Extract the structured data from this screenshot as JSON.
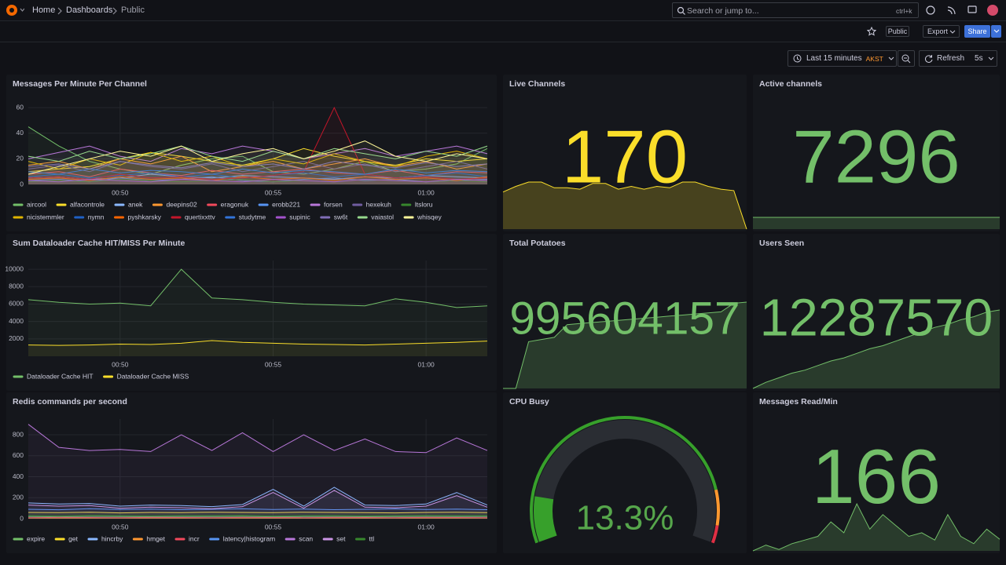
{
  "topbar": {
    "breadcrumbs": [
      "Home",
      "Dashboards",
      "Public"
    ],
    "search": "Search or jump to...",
    "shortcut": "ctrl+k"
  },
  "toolbar": {
    "badge": "Public",
    "export": "Export",
    "share": "Share"
  },
  "timepicker": {
    "range": "Last 15 minutes",
    "timezone": "AKST",
    "refresh": "Refresh",
    "interval": "5s"
  },
  "panels": [
    {
      "type": "timeseries",
      "title": "Messages Per Minute Per Channel",
      "ylim": [
        0,
        65
      ],
      "yticks": [
        0,
        20,
        40,
        60
      ],
      "xlim": [
        "00:47",
        "01:02"
      ],
      "xticks": [
        "00:50",
        "00:55",
        "01:00"
      ],
      "x": [
        "00:47",
        "00:48",
        "00:49",
        "00:50",
        "00:51",
        "00:52",
        "00:53",
        "00:54",
        "00:55",
        "00:56",
        "00:57",
        "00:58",
        "00:59",
        "01:00",
        "01:01",
        "01:02"
      ],
      "series": [
        {
          "name": "aircool",
          "color": "#73bf69",
          "values": [
            45,
            30,
            18,
            12,
            8,
            15,
            20,
            22,
            10,
            8,
            12,
            18,
            10,
            12,
            16,
            28
          ]
        },
        {
          "name": "alfacontrole",
          "color": "#fade2a",
          "values": [
            10,
            12,
            14,
            20,
            25,
            22,
            18,
            15,
            20,
            28,
            22,
            18,
            15,
            20,
            18,
            20
          ]
        },
        {
          "name": "anek",
          "color": "#8ab8ff",
          "values": [
            5,
            6,
            4,
            5,
            8,
            6,
            5,
            7,
            6,
            5,
            4,
            6,
            5,
            7,
            6,
            5
          ]
        },
        {
          "name": "deepins02",
          "color": "#ff9830",
          "values": [
            15,
            18,
            12,
            20,
            16,
            22,
            10,
            14,
            18,
            12,
            16,
            20,
            14,
            18,
            12,
            16
          ]
        },
        {
          "name": "eragonuk",
          "color": "#f2495c",
          "values": [
            8,
            10,
            6,
            12,
            9,
            7,
            11,
            8,
            10,
            12,
            9,
            8,
            11,
            7,
            10,
            9
          ]
        },
        {
          "name": "erobb221",
          "color": "#5794f2",
          "values": [
            3,
            4,
            2,
            5,
            3,
            4,
            6,
            3,
            2,
            4,
            5,
            3,
            4,
            2,
            3,
            4
          ]
        },
        {
          "name": "forsen",
          "color": "#b877d9",
          "values": [
            20,
            25,
            30,
            22,
            18,
            28,
            24,
            30,
            26,
            20,
            24,
            28,
            22,
            26,
            30,
            24
          ]
        },
        {
          "name": "hexekuh",
          "color": "#705da0",
          "values": [
            12,
            15,
            10,
            18,
            14,
            12,
            16,
            10,
            14,
            18,
            12,
            16,
            10,
            14,
            18,
            12
          ]
        },
        {
          "name": "ltsloru",
          "color": "#37872d",
          "values": [
            2,
            3,
            2,
            4,
            3,
            2,
            3,
            4,
            2,
            3,
            2,
            4,
            3,
            2,
            3,
            2
          ]
        },
        {
          "name": "nicistemmler",
          "color": "#e0b400",
          "values": [
            18,
            12,
            20,
            15,
            25,
            18,
            22,
            14,
            20,
            16,
            24,
            18,
            14,
            22,
            26,
            20
          ]
        },
        {
          "name": "nymn",
          "color": "#1f60c4",
          "values": [
            6,
            8,
            5,
            7,
            9,
            6,
            8,
            5,
            7,
            9,
            6,
            8,
            5,
            7,
            9,
            6
          ]
        },
        {
          "name": "pyshkarsky",
          "color": "#fa6400",
          "values": [
            4,
            5,
            3,
            6,
            4,
            5,
            3,
            6,
            4,
            5,
            3,
            6,
            4,
            5,
            3,
            6
          ]
        },
        {
          "name": "quertixxttv",
          "color": "#c4162a",
          "values": [
            5,
            6,
            4,
            8,
            5,
            6,
            4,
            5,
            7,
            10,
            60,
            8,
            5,
            6,
            4,
            5
          ]
        },
        {
          "name": "studytme",
          "color": "#3274d9",
          "values": [
            10,
            8,
            12,
            9,
            11,
            10,
            8,
            12,
            9,
            11,
            10,
            8,
            12,
            9,
            11,
            10
          ]
        },
        {
          "name": "supinic",
          "color": "#a352cc",
          "values": [
            3,
            2,
            4,
            3,
            2,
            4,
            3,
            2,
            4,
            3,
            2,
            4,
            3,
            2,
            4,
            3
          ]
        },
        {
          "name": "sw6t",
          "color": "#806eb7",
          "values": [
            14,
            16,
            12,
            18,
            15,
            13,
            17,
            14,
            16,
            12,
            18,
            15,
            13,
            17,
            14,
            16
          ]
        },
        {
          "name": "vaiastol",
          "color": "#96d98d",
          "values": [
            22,
            18,
            26,
            20,
            24,
            30,
            22,
            18,
            26,
            20,
            28,
            24,
            20,
            26,
            22,
            30
          ]
        },
        {
          "name": "whisqey",
          "color": "#fff899",
          "values": [
            8,
            14,
            20,
            26,
            22,
            30,
            18,
            24,
            28,
            20,
            26,
            34,
            22,
            18,
            24,
            20
          ]
        }
      ]
    },
    {
      "type": "stat",
      "title": "Live Channels",
      "value": 170,
      "color": "#fade2a",
      "sparkline": [
        130,
        150,
        165,
        165,
        145,
        145,
        140,
        160,
        160,
        140,
        150,
        140,
        150,
        145,
        165,
        165,
        150,
        140,
        135,
        0
      ]
    },
    {
      "type": "stat",
      "title": "Active channels",
      "value": 7296,
      "color": "#73bf69",
      "sparkline": [
        7296,
        7296,
        7296,
        7296,
        7296,
        7296,
        7296,
        7296,
        7296,
        7296,
        7296,
        7296,
        7296,
        7296,
        7296,
        7296,
        7296,
        7296,
        7296,
        7296
      ]
    },
    {
      "type": "timeseries",
      "title": "Sum Dataloader Cache HIT/MISS Per Minute",
      "ylim": [
        0,
        11000
      ],
      "yticks": [
        2000,
        4000,
        6000,
        8000,
        10000
      ],
      "xlim": [
        "00:47",
        "01:02"
      ],
      "xticks": [
        "00:50",
        "00:55",
        "01:00"
      ],
      "x": [
        "00:47",
        "00:48",
        "00:49",
        "00:50",
        "00:51",
        "00:52",
        "00:53",
        "00:54",
        "00:55",
        "00:56",
        "00:57",
        "00:58",
        "00:59",
        "01:00",
        "01:01",
        "01:02"
      ],
      "series": [
        {
          "name": "Dataloader Cache HIT",
          "color": "#73bf69",
          "values": [
            6500,
            6200,
            6000,
            6100,
            5800,
            10000,
            6700,
            6500,
            6200,
            6000,
            5900,
            5800,
            6600,
            6200,
            5600,
            5800
          ]
        },
        {
          "name": "Dataloader Cache MISS",
          "color": "#fade2a",
          "values": [
            1300,
            1250,
            1300,
            1400,
            1350,
            1500,
            1800,
            1600,
            1500,
            1400,
            1350,
            1300,
            1400,
            1500,
            1600,
            1750
          ]
        }
      ]
    },
    {
      "type": "stat",
      "title": "Total Potatoes",
      "value": 995604157,
      "color": "#73bf69",
      "sparkline": [
        995600100,
        995600100,
        995602300,
        995602400,
        995602500,
        995603100,
        995603150,
        995603200,
        995603250,
        995603300,
        995603350,
        995603400,
        995603450,
        995603500,
        995603550,
        995603600,
        995603650,
        995603700,
        995604100,
        995604157
      ]
    },
    {
      "type": "stat",
      "title": "Users Seen",
      "value": 12287570,
      "color": "#73bf69",
      "sparkline": [
        12285000,
        12285200,
        12285350,
        12285500,
        12285600,
        12285750,
        12285900,
        12286000,
        12286150,
        12286300,
        12286400,
        12286550,
        12286700,
        12286850,
        12287000,
        12287100,
        12287250,
        12287350,
        12287500,
        12287570
      ]
    },
    {
      "type": "timeseries",
      "title": "Redis commands per second",
      "ylim": [
        0,
        950
      ],
      "yticks": [
        0,
        200,
        400,
        600,
        800
      ],
      "xlim": [
        "00:47",
        "01:02"
      ],
      "xticks": [
        "00:50",
        "00:55",
        "01:00"
      ],
      "x": [
        "00:47",
        "00:48",
        "00:49",
        "00:50",
        "00:51",
        "00:52",
        "00:53",
        "00:54",
        "00:55",
        "00:56",
        "00:57",
        "00:58",
        "00:59",
        "01:00",
        "01:01",
        "01:02"
      ],
      "series": [
        {
          "name": "expire",
          "color": "#73bf69",
          "values": [
            20,
            18,
            22,
            20,
            19,
            21,
            20,
            22,
            18,
            20,
            21,
            19,
            20,
            22,
            20,
            21
          ]
        },
        {
          "name": "get",
          "color": "#fade2a",
          "values": [
            60,
            58,
            62,
            55,
            60,
            58,
            62,
            60,
            58,
            62,
            60,
            58,
            55,
            60,
            62,
            58
          ]
        },
        {
          "name": "hincrby",
          "color": "#8ab8ff",
          "values": [
            150,
            140,
            145,
            120,
            130,
            125,
            115,
            135,
            280,
            120,
            300,
            130,
            125,
            140,
            250,
            130
          ]
        },
        {
          "name": "hmget",
          "color": "#ff9830",
          "values": [
            5,
            5,
            6,
            5,
            5,
            6,
            5,
            5,
            6,
            5,
            5,
            6,
            5,
            5,
            6,
            5
          ]
        },
        {
          "name": "incr",
          "color": "#f2495c",
          "values": [
            10,
            12,
            11,
            10,
            12,
            11,
            10,
            12,
            11,
            10,
            12,
            11,
            10,
            12,
            11,
            10
          ]
        },
        {
          "name": "latency|histogram",
          "color": "#5794f2",
          "values": [
            90,
            85,
            95,
            88,
            92,
            86,
            90,
            94,
            88,
            92,
            86,
            90,
            94,
            88,
            92,
            86
          ]
        },
        {
          "name": "scan",
          "color": "#b877d9",
          "values": [
            900,
            680,
            650,
            660,
            640,
            800,
            650,
            820,
            640,
            800,
            650,
            760,
            640,
            630,
            770,
            650
          ]
        },
        {
          "name": "set",
          "color": "#ca95e5",
          "values": [
            130,
            120,
            125,
            100,
            110,
            105,
            95,
            115,
            250,
            100,
            270,
            110,
            105,
            120,
            220,
            110
          ]
        },
        {
          "name": "ttl",
          "color": "#37872d",
          "values": [
            30,
            28,
            32,
            30,
            29,
            31,
            30,
            32,
            28,
            30,
            31,
            29,
            30,
            32,
            30,
            31
          ]
        }
      ]
    },
    {
      "type": "gauge",
      "title": "CPU Busy",
      "value": 13.3,
      "value_label": "13.3%",
      "min": 0,
      "max": 100,
      "color": "#56a64b",
      "thresholds": [
        {
          "value": 0,
          "color": "#37a02b"
        },
        {
          "value": 85,
          "color": "#ff9830"
        },
        {
          "value": 95,
          "color": "#e02f44"
        }
      ]
    },
    {
      "type": "stat",
      "title": "Messages Read/Min",
      "value": 166,
      "color": "#73bf69",
      "sparkline": [
        150,
        158,
        152,
        160,
        165,
        170,
        190,
        175,
        215,
        180,
        200,
        185,
        170,
        175,
        165,
        200,
        170,
        160,
        180,
        166
      ]
    }
  ]
}
